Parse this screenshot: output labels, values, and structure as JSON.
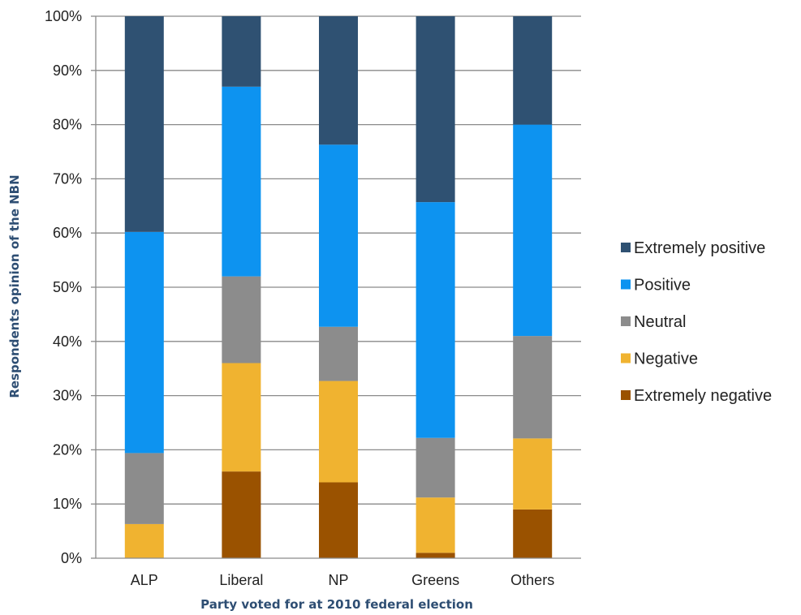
{
  "chart_data": {
    "type": "bar",
    "stacked": true,
    "categories": [
      "ALP",
      "Liberal",
      "NP",
      "Greens",
      "Others"
    ],
    "series": [
      {
        "name": "Extremely negative",
        "color": "#9a5200",
        "values": [
          0,
          16,
          14,
          1,
          9
        ]
      },
      {
        "name": "Negative",
        "color": "#f0b330",
        "values": [
          6.3,
          20,
          18.7,
          10.2,
          13.1
        ]
      },
      {
        "name": "Neutral",
        "color": "#8c8c8c",
        "values": [
          13.1,
          16,
          10,
          11,
          18.9
        ]
      },
      {
        "name": "Positive",
        "color": "#0d93f0",
        "values": [
          40.8,
          35,
          33.6,
          43.5,
          39
        ]
      },
      {
        "name": "Extremely positive",
        "color": "#2f5172",
        "values": [
          39.8,
          13,
          23.7,
          34.3,
          20
        ]
      }
    ],
    "xlabel": "Party voted for at 2010 federal election",
    "ylabel": "Respondents opinion of the NBN",
    "ylim": [
      0,
      100
    ],
    "yticks": [
      "0%",
      "10%",
      "20%",
      "30%",
      "40%",
      "50%",
      "60%",
      "70%",
      "80%",
      "90%",
      "100%"
    ],
    "grid": true,
    "legend_position": "right"
  }
}
